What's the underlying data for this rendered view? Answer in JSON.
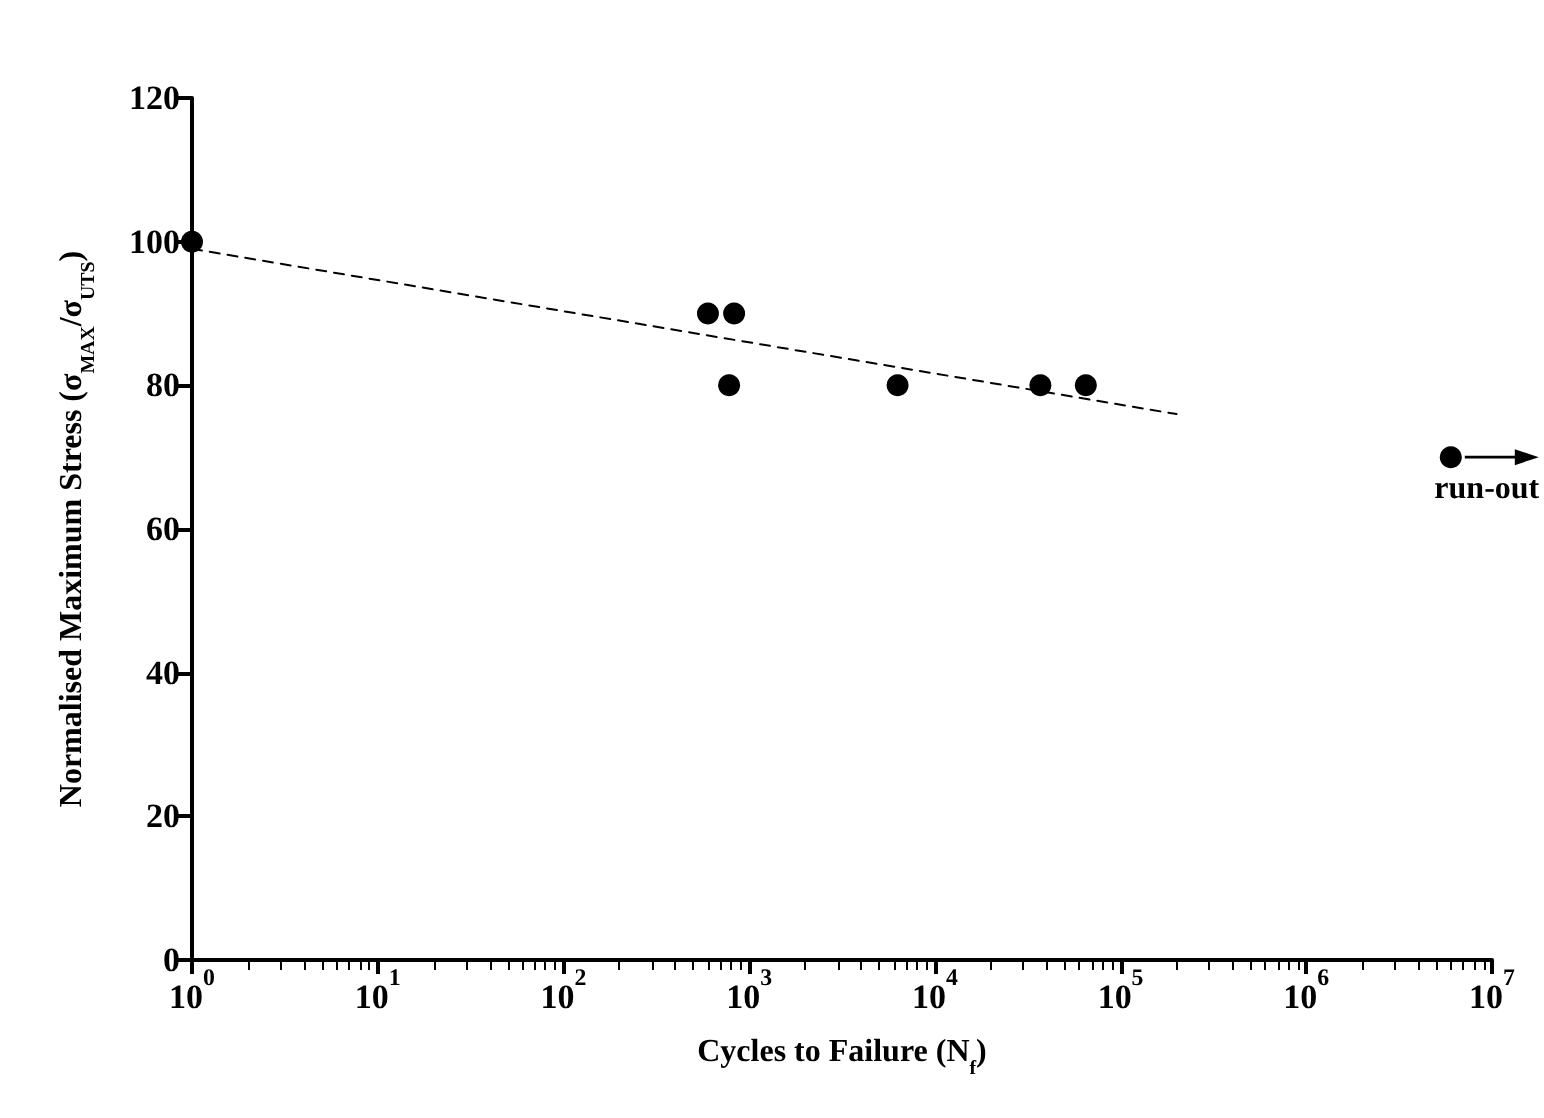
{
  "chart_data": {
    "type": "scatter",
    "xlabel": "Cycles to Failure (N$_{f}$)",
    "ylabel": "Normalised Maximum Stress (σ$_{MAX}$/σ$_{UTS}$)",
    "log": "x",
    "grid": false,
    "marker": "circle",
    "xlim": [
      1,
      10000000
    ],
    "xticks": [
      {
        "value": 1,
        "label": "10$^{0}$"
      },
      {
        "value": 10,
        "label": "10$^{1}$"
      },
      {
        "value": 100,
        "label": "10$^{2}$"
      },
      {
        "value": 1000,
        "label": "10$^{3}$"
      },
      {
        "value": 10000,
        "label": "10$^{4}$"
      },
      {
        "value": 100000,
        "label": "10$^{5}$"
      },
      {
        "value": 1000000,
        "label": "10$^{6}$"
      },
      {
        "value": 10000000,
        "label": "10$^{7}$"
      }
    ],
    "ylim": [
      0,
      120
    ],
    "yticks": [
      0,
      20,
      40,
      60,
      80,
      100,
      120
    ],
    "series": [
      {
        "color": "#000000",
        "x": [
          1,
          600,
          830,
          780,
          6300,
          37000,
          65000,
          6000000
        ],
        "values": [
          100,
          90,
          90,
          80,
          80,
          80,
          80,
          70
        ]
      },
      {
        "type": "line",
        "color": "#000000",
        "marker": "none",
        "line_style": "dashed",
        "x": [
          1,
          200000
        ],
        "values": [
          99,
          76
        ]
      }
    ],
    "annotations": [
      "run-out"
    ]
  }
}
